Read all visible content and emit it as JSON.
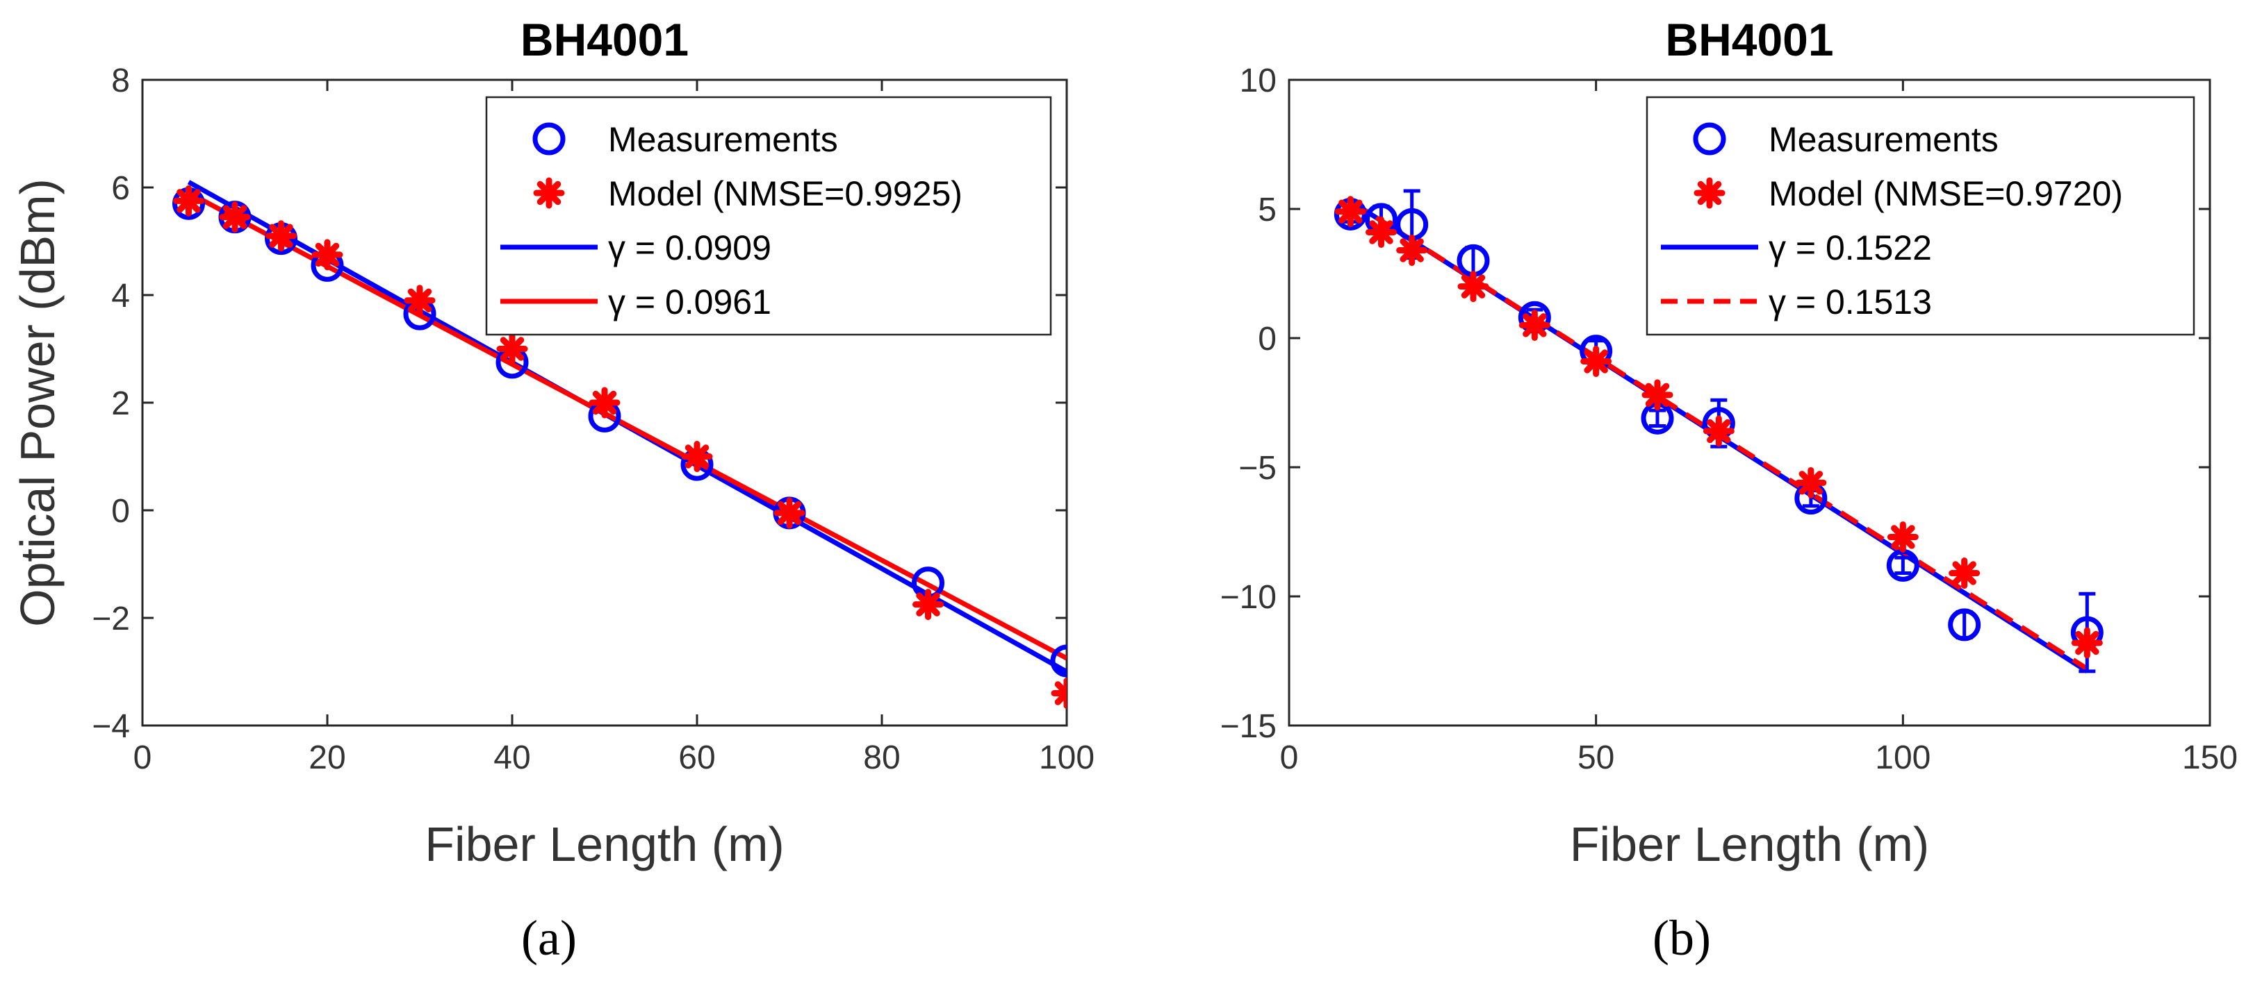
{
  "chart_data": [
    {
      "type": "line",
      "panel_caption": "(a)",
      "title": "BH4001",
      "xlabel": "Fiber Length (m)",
      "ylabel": "Optical Power (dBm)",
      "xlim": [
        0,
        100
      ],
      "ylim": [
        -4,
        8
      ],
      "xticks": [
        0,
        20,
        40,
        60,
        80,
        100
      ],
      "yticks": [
        -4,
        -2,
        0,
        2,
        4,
        6,
        8
      ],
      "xtick_labels": [
        "0",
        "20",
        "40",
        "60",
        "80",
        "100"
      ],
      "ytick_labels": [
        "−4",
        "−2",
        "0",
        "2",
        "4",
        "6",
        "8"
      ],
      "legend_position": "top-right",
      "series": [
        {
          "name": "Measurements",
          "kind": "markers-circle",
          "color": "#0000ff",
          "x": [
            5,
            10,
            15,
            20,
            30,
            40,
            50,
            60,
            70,
            85,
            100
          ],
          "y": [
            5.7,
            5.45,
            5.05,
            4.55,
            3.65,
            2.75,
            1.75,
            0.85,
            -0.05,
            -1.35,
            -2.8
          ]
        },
        {
          "name": "Model (NMSE=0.9925)",
          "kind": "markers-star",
          "color": "#ff0000",
          "x": [
            5,
            10,
            15,
            20,
            30,
            40,
            50,
            60,
            70,
            85,
            100
          ],
          "y": [
            5.75,
            5.45,
            5.1,
            4.75,
            3.9,
            3.0,
            2.0,
            1.0,
            -0.05,
            -1.75,
            -3.4
          ]
        },
        {
          "name": "γ = 0.0909",
          "kind": "line-solid",
          "color": "#0000ff",
          "x": [
            5,
            100
          ],
          "y": [
            6.1,
            -3.0
          ]
        },
        {
          "name": "γ = 0.0961",
          "kind": "line-solid",
          "color": "#ff0000",
          "x": [
            5,
            100
          ],
          "y": [
            5.9,
            -2.75
          ]
        }
      ]
    },
    {
      "type": "line",
      "panel_caption": "(b)",
      "title": "BH4001",
      "xlabel": "Fiber Length (m)",
      "ylabel": "",
      "xlim": [
        0,
        150
      ],
      "ylim": [
        -15,
        10
      ],
      "xticks": [
        0,
        50,
        100,
        150
      ],
      "yticks": [
        -15,
        -10,
        -5,
        0,
        5,
        10
      ],
      "xtick_labels": [
        "0",
        "50",
        "100",
        "150"
      ],
      "ytick_labels": [
        "−15",
        "−10",
        "−5",
        "0",
        "5",
        "10"
      ],
      "legend_position": "top-right",
      "series": [
        {
          "name": "Measurements",
          "kind": "markers-circle-errorbar",
          "color": "#0000ff",
          "x": [
            10,
            15,
            20,
            30,
            40,
            50,
            60,
            70,
            85,
            100,
            110,
            130
          ],
          "y": [
            4.8,
            4.6,
            4.4,
            3.0,
            0.8,
            -0.5,
            -3.1,
            -3.3,
            -6.2,
            -8.8,
            -11.1,
            -11.4
          ],
          "err": [
            0.3,
            0.5,
            1.3,
            0.5,
            0.3,
            0.4,
            0.3,
            0.9,
            0.3,
            0.3,
            0.5,
            1.5
          ]
        },
        {
          "name": "Model (NMSE=0.9720)",
          "kind": "markers-star",
          "color": "#ff0000",
          "x": [
            10,
            15,
            20,
            30,
            40,
            50,
            60,
            70,
            85,
            100,
            110,
            130
          ],
          "y": [
            4.9,
            4.1,
            3.4,
            2.0,
            0.5,
            -0.9,
            -2.2,
            -3.6,
            -5.6,
            -7.7,
            -9.1,
            -11.8
          ]
        },
        {
          "name": "γ = 0.1522",
          "kind": "line-solid",
          "color": "#0000ff",
          "x": [
            10,
            130
          ],
          "y": [
            5.3,
            -12.9
          ]
        },
        {
          "name": "γ = 0.1513",
          "kind": "line-dashed",
          "color": "#ff0000",
          "x": [
            10,
            130
          ],
          "y": [
            5.3,
            -12.8
          ]
        }
      ]
    }
  ]
}
